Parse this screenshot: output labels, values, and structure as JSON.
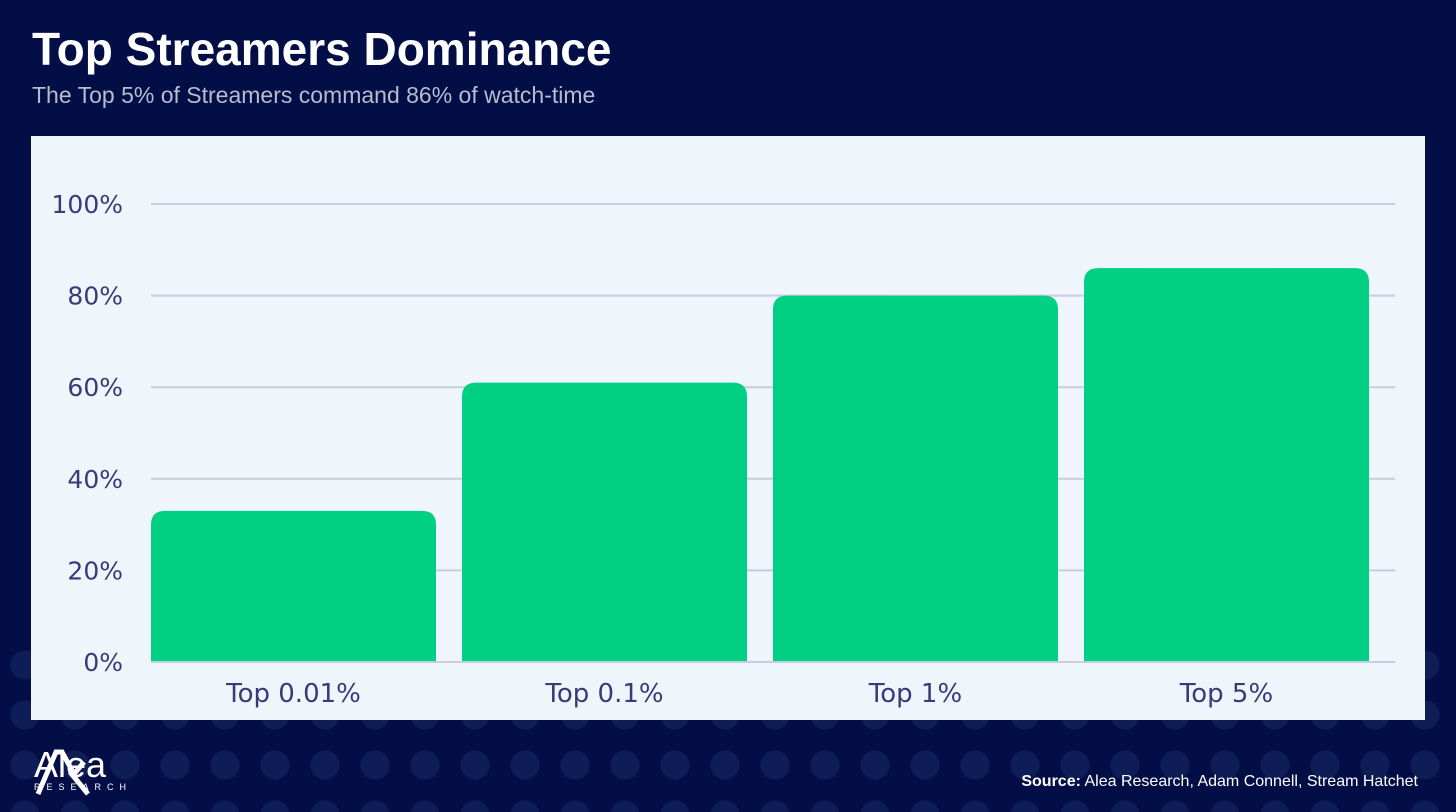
{
  "header": {
    "title": "Top Streamers Dominance",
    "subtitle": "The Top 5% of Streamers command 86% of watch-time"
  },
  "footer": {
    "brand": "Alea",
    "brand_sub": "RESEARCH",
    "source_label": "Source:",
    "source_text": " Alea Research, Adam Connell, Stream Hatchet"
  },
  "colors": {
    "background": "#020e45",
    "bar": "#00d084",
    "axis_text": "#3a3a78",
    "grid": "#c9cbe0"
  },
  "chart_data": {
    "type": "bar",
    "categories": [
      "Top 0.01%",
      "Top 0.1%",
      "Top 1%",
      "Top 5%"
    ],
    "values": [
      33,
      61,
      80,
      86
    ],
    "ylim": [
      0,
      100
    ],
    "yticks": [
      0,
      20,
      40,
      60,
      80,
      100
    ],
    "ytick_labels": [
      "0%",
      "20%",
      "40%",
      "60%",
      "80%",
      "100%"
    ],
    "grid": true
  }
}
